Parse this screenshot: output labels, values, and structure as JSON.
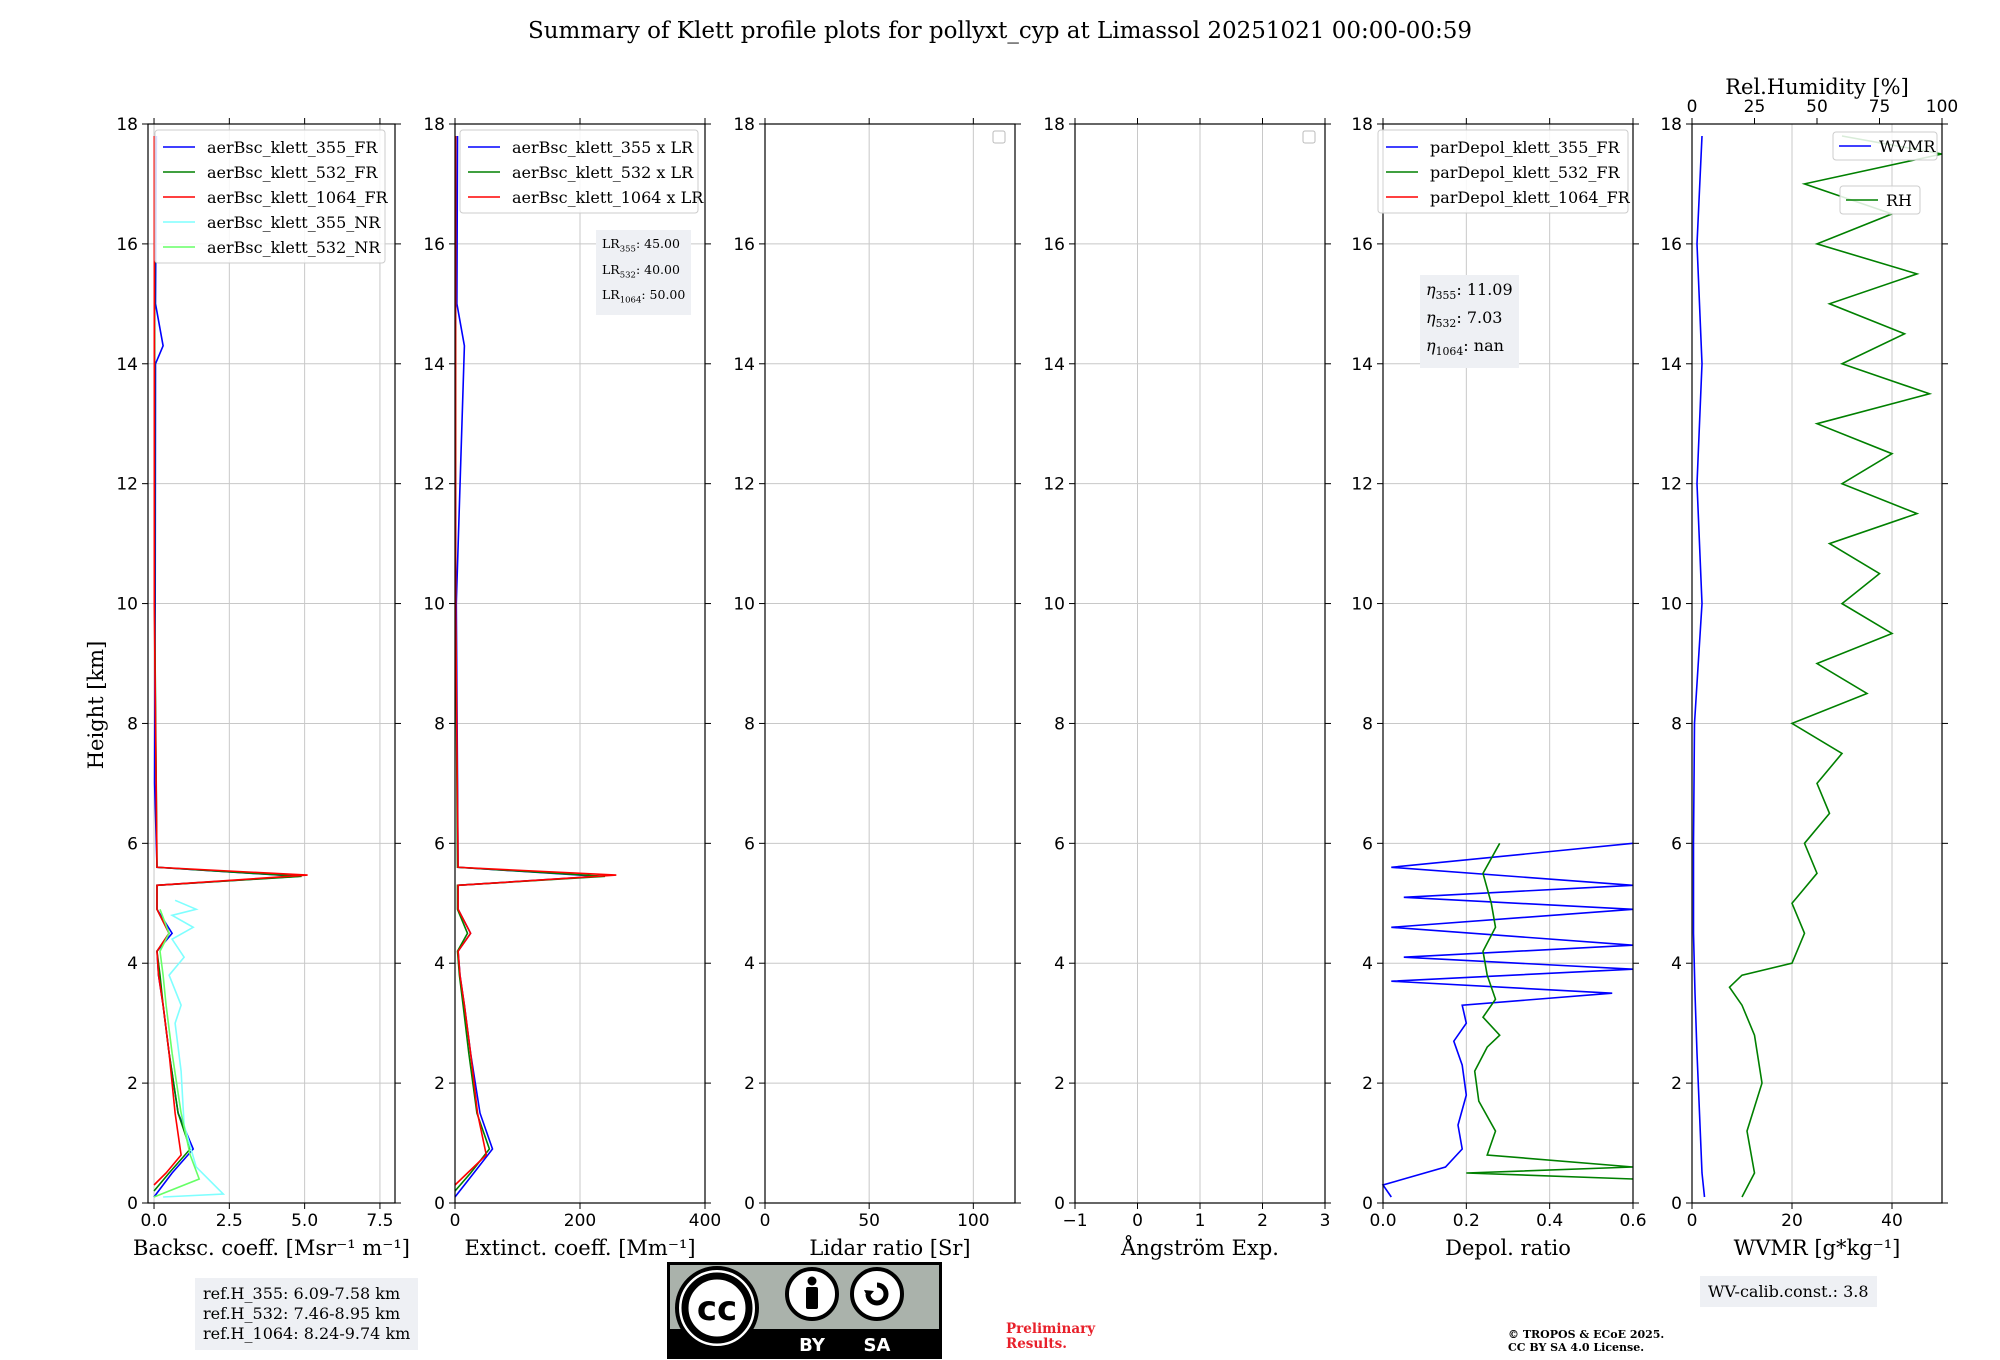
{
  "title": "Summary of Klett profile plots for pollyxt_cyp at Limassol 20251021 00:00-00:59",
  "ylabel": "Height [km]",
  "colors": {
    "c355": "#0000ff",
    "c532": "#008000",
    "c1064": "#ff0000",
    "c355nr": "#7fffff",
    "c532nr": "#66ff66",
    "grid": "#c8c8c8"
  },
  "ref_heights": [
    "ref.H_355: 6.09-7.58 km",
    "ref.H_532: 7.46-8.95 km",
    "ref.H_1064: 8.24-9.74 km"
  ],
  "lidar_ratios": {
    "lr355": ": 45.00",
    "lr532": ": 40.00",
    "lr1064": ": 50.00"
  },
  "eta": {
    "e355": ": 11.09",
    "e532": ": 7.03",
    "e1064": ": nan"
  },
  "wv_calib": "WV-calib.const.: 3.8",
  "preliminary": [
    "Preliminary",
    "Results."
  ],
  "copyright": [
    "© TROPOS & ECoE 2025.",
    "CC BY SA 4.0 License."
  ],
  "license_badge": {
    "left": "BY",
    "right": "SA",
    "logo": "cc"
  },
  "chart_data": [
    {
      "type": "line",
      "xlabel": "Backsc. coeff. [Msr⁻¹ m⁻¹]",
      "xlim": [
        -0.2,
        8.0
      ],
      "xticks": [
        0.0,
        2.5,
        5.0,
        7.5
      ],
      "xticklabels": [
        "0.0",
        "2.5",
        "5.0",
        "7.5"
      ],
      "ylim": [
        0,
        18
      ],
      "yticks": [
        0,
        2,
        4,
        6,
        8,
        10,
        12,
        14,
        16,
        18
      ],
      "legend_position": "top-left",
      "series": [
        {
          "name": "aerBsc_klett_355_FR",
          "color": "c355",
          "points": [
            [
              0.0,
              0.1
            ],
            [
              0.6,
              0.5
            ],
            [
              1.3,
              0.9
            ],
            [
              0.8,
              1.5
            ],
            [
              0.5,
              2.5
            ],
            [
              0.3,
              3.3
            ],
            [
              0.15,
              3.8
            ],
            [
              0.1,
              4.2
            ],
            [
              0.6,
              4.5
            ],
            [
              0.1,
              4.9
            ],
            [
              0.1,
              5.3
            ],
            [
              4.8,
              5.45
            ],
            [
              0.1,
              5.6
            ],
            [
              0.02,
              7
            ],
            [
              0.04,
              10
            ],
            [
              0.05,
              14
            ],
            [
              0.3,
              14.3
            ],
            [
              0.05,
              15
            ],
            [
              0.08,
              17.8
            ]
          ]
        },
        {
          "name": "aerBsc_klett_532_FR",
          "color": "c532",
          "points": [
            [
              0.0,
              0.2
            ],
            [
              0.5,
              0.5
            ],
            [
              1.2,
              0.9
            ],
            [
              0.8,
              1.5
            ],
            [
              0.5,
              2.5
            ],
            [
              0.3,
              3.3
            ],
            [
              0.2,
              3.8
            ],
            [
              0.1,
              4.2
            ],
            [
              0.5,
              4.5
            ],
            [
              0.1,
              4.9
            ],
            [
              0.1,
              5.3
            ],
            [
              4.9,
              5.45
            ],
            [
              0.1,
              5.6
            ],
            [
              0.02,
              10
            ],
            [
              0.02,
              17.8
            ]
          ]
        },
        {
          "name": "aerBsc_klett_1064_FR",
          "color": "c1064",
          "points": [
            [
              0.0,
              0.3
            ],
            [
              0.4,
              0.5
            ],
            [
              0.9,
              0.8
            ],
            [
              0.7,
              1.5
            ],
            [
              0.5,
              2.5
            ],
            [
              0.3,
              3.3
            ],
            [
              0.15,
              3.8
            ],
            [
              0.1,
              4.2
            ],
            [
              0.5,
              4.5
            ],
            [
              0.1,
              4.9
            ],
            [
              0.1,
              5.3
            ],
            [
              5.1,
              5.47
            ],
            [
              0.1,
              5.6
            ],
            [
              0.01,
              10
            ],
            [
              0.01,
              17.8
            ]
          ]
        },
        {
          "name": "aerBsc_klett_355_NR",
          "color": "c355nr",
          "points": [
            [
              0.3,
              0.1
            ],
            [
              2.3,
              0.15
            ],
            [
              1.4,
              0.6
            ],
            [
              1.0,
              1.3
            ],
            [
              0.9,
              2.2
            ],
            [
              0.7,
              3.0
            ],
            [
              0.9,
              3.3
            ],
            [
              0.5,
              3.8
            ],
            [
              1.0,
              4.1
            ],
            [
              0.6,
              4.4
            ],
            [
              1.3,
              4.6
            ],
            [
              0.6,
              4.8
            ],
            [
              1.4,
              4.9
            ],
            [
              0.7,
              5.05
            ]
          ]
        },
        {
          "name": "aerBsc_klett_532_NR",
          "color": "c532nr",
          "points": [
            [
              0.0,
              0.1
            ],
            [
              1.5,
              0.4
            ],
            [
              1.2,
              0.8
            ],
            [
              0.9,
              1.5
            ],
            [
              0.6,
              2.5
            ],
            [
              0.4,
              3.3
            ],
            [
              0.3,
              3.8
            ],
            [
              0.2,
              4.2
            ],
            [
              0.5,
              4.5
            ],
            [
              0.2,
              4.9
            ]
          ]
        }
      ]
    },
    {
      "type": "line",
      "xlabel": "Extinct. coeff. [Mm⁻¹]",
      "xlim": [
        0,
        400
      ],
      "xticks": [
        0,
        200,
        400
      ],
      "xticklabels": [
        "0",
        "200",
        "400"
      ],
      "ylim": [
        0,
        18
      ],
      "yticks": [
        0,
        2,
        4,
        6,
        8,
        10,
        12,
        14,
        16,
        18
      ],
      "legend_position": "top-left",
      "series": [
        {
          "name": "aerBsc_klett_355 x LR",
          "color": "c355",
          "points": [
            [
              0,
              0.1
            ],
            [
              30,
              0.5
            ],
            [
              60,
              0.9
            ],
            [
              40,
              1.5
            ],
            [
              25,
              2.5
            ],
            [
              15,
              3.3
            ],
            [
              8,
              3.8
            ],
            [
              5,
              4.2
            ],
            [
              25,
              4.5
            ],
            [
              5,
              4.9
            ],
            [
              5,
              5.3
            ],
            [
              230,
              5.45
            ],
            [
              5,
              5.6
            ],
            [
              2,
              10
            ],
            [
              15,
              14.3
            ],
            [
              3,
              15
            ],
            [
              4,
              17.8
            ]
          ]
        },
        {
          "name": "aerBsc_klett_532 x LR",
          "color": "c532",
          "points": [
            [
              0,
              0.2
            ],
            [
              25,
              0.5
            ],
            [
              55,
              0.9
            ],
            [
              35,
              1.5
            ],
            [
              22,
              2.5
            ],
            [
              13,
              3.3
            ],
            [
              7,
              3.8
            ],
            [
              4,
              4.2
            ],
            [
              20,
              4.5
            ],
            [
              4,
              4.9
            ],
            [
              4,
              5.3
            ],
            [
              240,
              5.45
            ],
            [
              4,
              5.6
            ],
            [
              1,
              10
            ],
            [
              1,
              17.8
            ]
          ]
        },
        {
          "name": "aerBsc_klett_1064 x LR",
          "color": "c1064",
          "points": [
            [
              0,
              0.3
            ],
            [
              20,
              0.5
            ],
            [
              50,
              0.8
            ],
            [
              36,
              1.5
            ],
            [
              25,
              2.5
            ],
            [
              15,
              3.3
            ],
            [
              8,
              3.8
            ],
            [
              5,
              4.2
            ],
            [
              25,
              4.5
            ],
            [
              5,
              4.9
            ],
            [
              5,
              5.3
            ],
            [
              258,
              5.47
            ],
            [
              5,
              5.6
            ],
            [
              1,
              10
            ],
            [
              1,
              17.8
            ]
          ]
        }
      ]
    },
    {
      "type": "line",
      "xlabel": "Lidar ratio [Sr]",
      "xlim": [
        0,
        120
      ],
      "xticks": [
        0,
        50,
        100
      ],
      "xticklabels": [
        "0",
        "50",
        "100"
      ],
      "ylim": [
        0,
        18
      ],
      "yticks": [
        0,
        2,
        4,
        6,
        8,
        10,
        12,
        14,
        16,
        18
      ],
      "legend_position": "top-right",
      "series": []
    },
    {
      "type": "line",
      "xlabel": "Ångström Exp.",
      "xlim": [
        -1,
        3
      ],
      "xticks": [
        -1,
        0,
        1,
        2,
        3
      ],
      "xticklabels": [
        "−1",
        "0",
        "1",
        "2",
        "3"
      ],
      "ylim": [
        0,
        18
      ],
      "yticks": [
        0,
        2,
        4,
        6,
        8,
        10,
        12,
        14,
        16,
        18
      ],
      "legend_position": "top-right",
      "series": []
    },
    {
      "type": "line",
      "xlabel": "Depol. ratio",
      "xlim": [
        0,
        0.6
      ],
      "xticks": [
        0.0,
        0.2,
        0.4,
        0.6
      ],
      "xticklabels": [
        "0.0",
        "0.2",
        "0.4",
        "0.6"
      ],
      "ylim": [
        0,
        18
      ],
      "yticks": [
        0,
        2,
        4,
        6,
        8,
        10,
        12,
        14,
        16,
        18
      ],
      "legend_position": "top-left",
      "series": [
        {
          "name": "parDepol_klett_355_FR",
          "color": "c355",
          "points": [
            [
              0.02,
              0.1
            ],
            [
              0.0,
              0.3
            ],
            [
              0.15,
              0.6
            ],
            [
              0.19,
              0.9
            ],
            [
              0.18,
              1.3
            ],
            [
              0.2,
              1.8
            ],
            [
              0.19,
              2.3
            ],
            [
              0.17,
              2.7
            ],
            [
              0.2,
              3.0
            ],
            [
              0.19,
              3.3
            ],
            [
              0.55,
              3.5
            ],
            [
              0.02,
              3.7
            ],
            [
              0.6,
              3.9
            ],
            [
              0.05,
              4.1
            ],
            [
              0.6,
              4.3
            ],
            [
              0.02,
              4.6
            ],
            [
              0.6,
              4.9
            ],
            [
              0.05,
              5.1
            ],
            [
              0.6,
              5.3
            ],
            [
              0.02,
              5.6
            ],
            [
              0.6,
              6.0
            ]
          ]
        },
        {
          "name": "parDepol_klett_532_FR",
          "color": "c532",
          "points": [
            [
              0.6,
              0.4
            ],
            [
              0.2,
              0.5
            ],
            [
              0.6,
              0.6
            ],
            [
              0.25,
              0.8
            ],
            [
              0.27,
              1.2
            ],
            [
              0.23,
              1.7
            ],
            [
              0.22,
              2.2
            ],
            [
              0.25,
              2.6
            ],
            [
              0.28,
              2.8
            ],
            [
              0.24,
              3.1
            ],
            [
              0.27,
              3.4
            ],
            [
              0.25,
              3.8
            ],
            [
              0.24,
              4.2
            ],
            [
              0.27,
              4.6
            ],
            [
              0.26,
              5.0
            ],
            [
              0.24,
              5.5
            ],
            [
              0.28,
              6.0
            ]
          ]
        },
        {
          "name": "parDepol_klett_1064_FR",
          "color": "c1064",
          "points": []
        }
      ]
    },
    {
      "type": "line",
      "xlabel": "WVMR [g*kg⁻¹]",
      "xlim": [
        0,
        50
      ],
      "xticks": [
        0,
        20,
        40
      ],
      "xticklabels": [
        "0",
        "20",
        "40"
      ],
      "ylim": [
        0,
        18
      ],
      "yticks": [
        0,
        2,
        4,
        6,
        8,
        10,
        12,
        14,
        16,
        18
      ],
      "legend_position": "top-right",
      "top_axis": {
        "label": "Rel.Humidity [%]",
        "xlim": [
          0,
          100
        ],
        "xticks": [
          0,
          25,
          50,
          75,
          100
        ],
        "xticklabels": [
          "0",
          "25",
          "50",
          "75",
          "100"
        ]
      },
      "series": [
        {
          "name": "WVMR",
          "color": "c355",
          "points": [
            [
              2.5,
              0.1
            ],
            [
              2.0,
              0.5
            ],
            [
              1.5,
              1.5
            ],
            [
              1.0,
              2.5
            ],
            [
              0.6,
              3.5
            ],
            [
              0.3,
              4.5
            ],
            [
              0.3,
              6
            ],
            [
              0.5,
              8
            ],
            [
              2,
              10
            ],
            [
              1,
              12
            ],
            [
              2,
              14
            ],
            [
              1,
              16
            ],
            [
              2,
              17.8
            ]
          ]
        },
        {
          "name": "RH",
          "color": "c532",
          "axis": "top",
          "points": [
            [
              20,
              0.1
            ],
            [
              25,
              0.5
            ],
            [
              22,
              1.2
            ],
            [
              28,
              2.0
            ],
            [
              25,
              2.8
            ],
            [
              20,
              3.3
            ],
            [
              15,
              3.6
            ],
            [
              20,
              3.8
            ],
            [
              40,
              4.0
            ],
            [
              45,
              4.5
            ],
            [
              40,
              5.0
            ],
            [
              50,
              5.5
            ],
            [
              45,
              6
            ],
            [
              55,
              6.5
            ],
            [
              50,
              7
            ],
            [
              60,
              7.5
            ],
            [
              40,
              8
            ],
            [
              70,
              8.5
            ],
            [
              50,
              9
            ],
            [
              80,
              9.5
            ],
            [
              60,
              10
            ],
            [
              75,
              10.5
            ],
            [
              55,
              11
            ],
            [
              90,
              11.5
            ],
            [
              60,
              12
            ],
            [
              80,
              12.5
            ],
            [
              50,
              13
            ],
            [
              95,
              13.5
            ],
            [
              60,
              14
            ],
            [
              85,
              14.5
            ],
            [
              55,
              15
            ],
            [
              90,
              15.5
            ],
            [
              50,
              16
            ],
            [
              80,
              16.5
            ],
            [
              45,
              17
            ],
            [
              100,
              17.5
            ],
            [
              60,
              17.8
            ]
          ]
        }
      ]
    }
  ]
}
